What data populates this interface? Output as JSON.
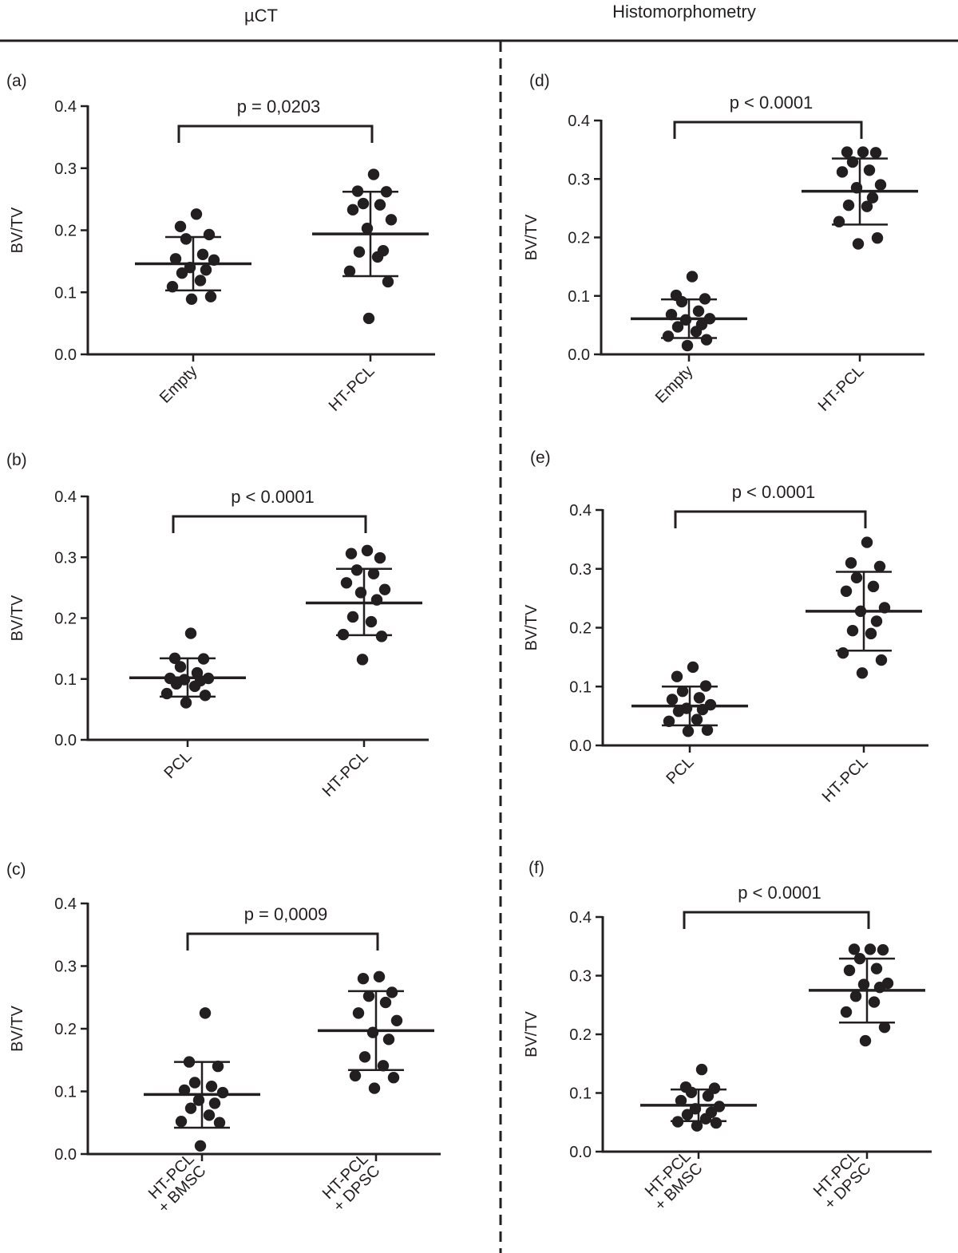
{
  "headers": {
    "left": "µCT",
    "right": "Histomorphometry"
  },
  "colors": {
    "ink": "#231f20",
    "background": "#ffffff"
  },
  "chart_data": [
    {
      "id": "a",
      "panel_label": "(a)",
      "type": "scatter",
      "subtype": "dot-plot with mean ± SD",
      "ylabel": "BV/TV",
      "ylim": [
        0,
        0.4
      ],
      "yticks": [
        "0.0",
        "0.1",
        "0.2",
        "0.3",
        "0.4"
      ],
      "groups": [
        "Empty",
        "HT-PCL"
      ],
      "p_label": "p = 0,0203",
      "stats": [
        {
          "mean": 0.146,
          "sd_low": 0.103,
          "sd_high": 0.189
        },
        {
          "mean": 0.194,
          "sd_low": 0.126,
          "sd_high": 0.262
        }
      ],
      "points": [
        [
          0.226,
          0.206,
          0.193,
          0.186,
          0.161,
          0.154,
          0.152,
          0.14,
          0.136,
          0.131,
          0.119,
          0.109,
          0.093,
          0.089
        ],
        [
          0.29,
          0.263,
          0.262,
          0.243,
          0.241,
          0.233,
          0.217,
          0.203,
          0.167,
          0.165,
          0.157,
          0.134,
          0.117,
          0.058
        ]
      ]
    },
    {
      "id": "d",
      "panel_label": "(d)",
      "type": "scatter",
      "subtype": "dot-plot with mean ± SD",
      "ylabel": "BV/TV",
      "ylim": [
        0,
        0.4
      ],
      "yticks": [
        "0.0",
        "0.1",
        "0.2",
        "0.3",
        "0.4"
      ],
      "groups": [
        "Empty",
        "HT-PCL"
      ],
      "p_label": "p < 0.0001",
      "stats": [
        {
          "mean": 0.061,
          "sd_low": 0.028,
          "sd_high": 0.094
        },
        {
          "mean": 0.279,
          "sd_low": 0.222,
          "sd_high": 0.335
        }
      ],
      "points": [
        [
          0.133,
          0.101,
          0.095,
          0.09,
          0.074,
          0.068,
          0.061,
          0.059,
          0.051,
          0.047,
          0.039,
          0.031,
          0.025,
          0.015
        ],
        [
          0.346,
          0.346,
          0.345,
          0.329,
          0.315,
          0.312,
          0.29,
          0.285,
          0.268,
          0.255,
          0.253,
          0.227,
          0.199,
          0.189
        ]
      ]
    },
    {
      "id": "b",
      "panel_label": "(b)",
      "type": "scatter",
      "subtype": "dot-plot with mean ± SD",
      "ylabel": "BV/TV",
      "ylim": [
        0,
        0.4
      ],
      "yticks": [
        "0.0",
        "0.1",
        "0.2",
        "0.3",
        "0.4"
      ],
      "groups": [
        "PCL",
        "HT-PCL"
      ],
      "p_label": "p < 0.0001",
      "stats": [
        {
          "mean": 0.102,
          "sd_low": 0.071,
          "sd_high": 0.134
        },
        {
          "mean": 0.225,
          "sd_low": 0.172,
          "sd_high": 0.281
        }
      ],
      "points": [
        [
          0.175,
          0.134,
          0.133,
          0.12,
          0.11,
          0.101,
          0.101,
          0.099,
          0.097,
          0.092,
          0.088,
          0.076,
          0.073,
          0.061
        ],
        [
          0.311,
          0.306,
          0.299,
          0.279,
          0.273,
          0.258,
          0.247,
          0.242,
          0.23,
          0.202,
          0.194,
          0.173,
          0.17,
          0.132
        ]
      ]
    },
    {
      "id": "e",
      "panel_label": "(e)",
      "type": "scatter",
      "subtype": "dot-plot with mean ± SD",
      "ylabel": "BV/TV",
      "ylim": [
        0,
        0.4
      ],
      "yticks": [
        "0.0",
        "0.1",
        "0.2",
        "0.3",
        "0.4"
      ],
      "groups": [
        "PCL",
        "HT-PCL"
      ],
      "p_label": "p < 0.0001",
      "stats": [
        {
          "mean": 0.067,
          "sd_low": 0.034,
          "sd_high": 0.1
        },
        {
          "mean": 0.228,
          "sd_low": 0.161,
          "sd_high": 0.295
        }
      ],
      "points": [
        [
          0.133,
          0.117,
          0.101,
          0.092,
          0.081,
          0.078,
          0.069,
          0.063,
          0.061,
          0.058,
          0.044,
          0.041,
          0.026,
          0.024
        ],
        [
          0.345,
          0.31,
          0.304,
          0.285,
          0.27,
          0.262,
          0.234,
          0.228,
          0.211,
          0.195,
          0.19,
          0.157,
          0.145,
          0.123
        ]
      ]
    },
    {
      "id": "c",
      "panel_label": "(c)",
      "type": "scatter",
      "subtype": "dot-plot with mean ± SD",
      "ylabel": "BV/TV",
      "ylim": [
        0,
        0.4
      ],
      "yticks": [
        "0.0",
        "0.1",
        "0.2",
        "0.3",
        "0.4"
      ],
      "groups": [
        "HT-PCL\n+ BMSC",
        "HT-PCL\n+ DPSC"
      ],
      "p_label": "p = 0,0009",
      "stats": [
        {
          "mean": 0.095,
          "sd_low": 0.042,
          "sd_high": 0.147
        },
        {
          "mean": 0.197,
          "sd_low": 0.134,
          "sd_high": 0.26
        }
      ],
      "points": [
        [
          0.225,
          0.147,
          0.14,
          0.114,
          0.108,
          0.102,
          0.098,
          0.086,
          0.081,
          0.073,
          0.062,
          0.052,
          0.05,
          0.013
        ],
        [
          0.283,
          0.28,
          0.258,
          0.252,
          0.242,
          0.225,
          0.213,
          0.194,
          0.183,
          0.155,
          0.141,
          0.125,
          0.122,
          0.105
        ]
      ]
    },
    {
      "id": "f",
      "panel_label": "(f)",
      "type": "scatter",
      "subtype": "dot-plot with mean ± SD",
      "ylabel": "BV/TV",
      "ylim": [
        0,
        0.4
      ],
      "yticks": [
        "0.0",
        "0.1",
        "0.2",
        "0.3",
        "0.4"
      ],
      "groups": [
        "HT-PCL\n+ BMSC",
        "HT-PCL\n+ DPSC"
      ],
      "p_label": "p < 0.0001",
      "stats": [
        {
          "mean": 0.079,
          "sd_low": 0.052,
          "sd_high": 0.106
        },
        {
          "mean": 0.275,
          "sd_low": 0.22,
          "sd_high": 0.329
        }
      ],
      "points": [
        [
          0.14,
          0.11,
          0.108,
          0.101,
          0.095,
          0.087,
          0.077,
          0.073,
          0.067,
          0.063,
          0.056,
          0.051,
          0.049,
          0.044
        ],
        [
          0.345,
          0.345,
          0.344,
          0.329,
          0.312,
          0.309,
          0.287,
          0.285,
          0.28,
          0.265,
          0.255,
          0.238,
          0.212,
          0.189
        ]
      ]
    }
  ]
}
